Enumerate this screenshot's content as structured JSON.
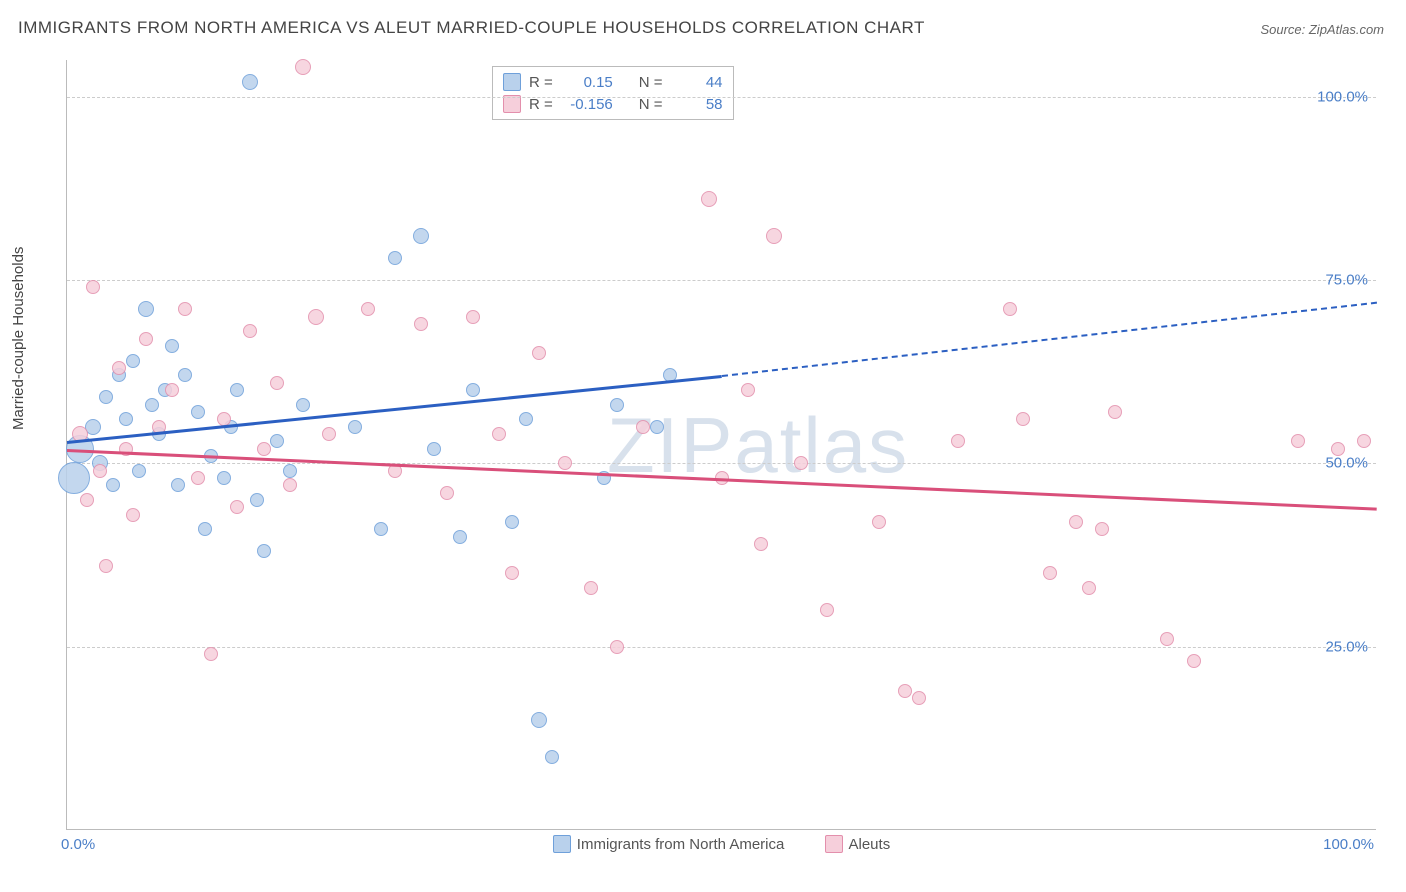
{
  "title": "IMMIGRANTS FROM NORTH AMERICA VS ALEUT MARRIED-COUPLE HOUSEHOLDS CORRELATION CHART",
  "source": "Source: ZipAtlas.com",
  "watermark": "ZIPatlas",
  "ylabel": "Married-couple Households",
  "chart": {
    "type": "scatter",
    "xlim": [
      0,
      100
    ],
    "ylim": [
      0,
      105
    ],
    "yticks": [
      25,
      50,
      75,
      100
    ],
    "ytick_labels": [
      "25.0%",
      "50.0%",
      "75.0%",
      "100.0%"
    ],
    "xtick_left": "0.0%",
    "xtick_right": "100.0%",
    "grid_color": "#cccccc",
    "axis_color": "#bbbbbb",
    "background_color": "#ffffff"
  },
  "series": [
    {
      "name": "Immigrants from North America",
      "fill": "#b9d1ec",
      "stroke": "#6fa0da",
      "line_color": "#2b5fc2",
      "r": 0.15,
      "n": 44,
      "trend": {
        "x1": 0,
        "y1": 53,
        "x2_solid": 50,
        "y2_solid": 62,
        "x2": 100,
        "y2": 72
      },
      "points": [
        {
          "x": 1,
          "y": 52,
          "r": 14
        },
        {
          "x": 0.5,
          "y": 48,
          "r": 16
        },
        {
          "x": 2,
          "y": 55,
          "r": 8
        },
        {
          "x": 2.5,
          "y": 50,
          "r": 8
        },
        {
          "x": 3,
          "y": 59,
          "r": 7
        },
        {
          "x": 3.5,
          "y": 47,
          "r": 7
        },
        {
          "x": 4,
          "y": 62,
          "r": 7
        },
        {
          "x": 4.5,
          "y": 56,
          "r": 7
        },
        {
          "x": 5,
          "y": 64,
          "r": 7
        },
        {
          "x": 5.5,
          "y": 49,
          "r": 7
        },
        {
          "x": 6,
          "y": 71,
          "r": 8
        },
        {
          "x": 6.5,
          "y": 58,
          "r": 7
        },
        {
          "x": 7,
          "y": 54,
          "r": 7
        },
        {
          "x": 7.5,
          "y": 60,
          "r": 7
        },
        {
          "x": 8,
          "y": 66,
          "r": 7
        },
        {
          "x": 8.5,
          "y": 47,
          "r": 7
        },
        {
          "x": 9,
          "y": 62,
          "r": 7
        },
        {
          "x": 10,
          "y": 57,
          "r": 7
        },
        {
          "x": 10.5,
          "y": 41,
          "r": 7
        },
        {
          "x": 11,
          "y": 51,
          "r": 7
        },
        {
          "x": 12,
          "y": 48,
          "r": 7
        },
        {
          "x": 12.5,
          "y": 55,
          "r": 7
        },
        {
          "x": 13,
          "y": 60,
          "r": 7
        },
        {
          "x": 14,
          "y": 102,
          "r": 8
        },
        {
          "x": 14.5,
          "y": 45,
          "r": 7
        },
        {
          "x": 15,
          "y": 38,
          "r": 7
        },
        {
          "x": 16,
          "y": 53,
          "r": 7
        },
        {
          "x": 17,
          "y": 49,
          "r": 7
        },
        {
          "x": 18,
          "y": 58,
          "r": 7
        },
        {
          "x": 22,
          "y": 55,
          "r": 7
        },
        {
          "x": 24,
          "y": 41,
          "r": 7
        },
        {
          "x": 25,
          "y": 78,
          "r": 7
        },
        {
          "x": 27,
          "y": 81,
          "r": 8
        },
        {
          "x": 28,
          "y": 52,
          "r": 7
        },
        {
          "x": 30,
          "y": 40,
          "r": 7
        },
        {
          "x": 31,
          "y": 60,
          "r": 7
        },
        {
          "x": 34,
          "y": 42,
          "r": 7
        },
        {
          "x": 35,
          "y": 56,
          "r": 7
        },
        {
          "x": 36,
          "y": 15,
          "r": 8
        },
        {
          "x": 37,
          "y": 10,
          "r": 7
        },
        {
          "x": 41,
          "y": 48,
          "r": 7
        },
        {
          "x": 42,
          "y": 58,
          "r": 7
        },
        {
          "x": 45,
          "y": 55,
          "r": 7
        },
        {
          "x": 46,
          "y": 62,
          "r": 7
        }
      ]
    },
    {
      "name": "Aleuts",
      "fill": "#f6cfdb",
      "stroke": "#e38fac",
      "line_color": "#d94f7a",
      "r": -0.156,
      "n": 58,
      "trend": {
        "x1": 0,
        "y1": 52,
        "x2_solid": 100,
        "y2_solid": 44,
        "x2": 100,
        "y2": 44
      },
      "points": [
        {
          "x": 1,
          "y": 54,
          "r": 8
        },
        {
          "x": 1.5,
          "y": 45,
          "r": 7
        },
        {
          "x": 2,
          "y": 74,
          "r": 7
        },
        {
          "x": 2.5,
          "y": 49,
          "r": 7
        },
        {
          "x": 3,
          "y": 36,
          "r": 7
        },
        {
          "x": 4,
          "y": 63,
          "r": 7
        },
        {
          "x": 4.5,
          "y": 52,
          "r": 7
        },
        {
          "x": 5,
          "y": 43,
          "r": 7
        },
        {
          "x": 6,
          "y": 67,
          "r": 7
        },
        {
          "x": 7,
          "y": 55,
          "r": 7
        },
        {
          "x": 8,
          "y": 60,
          "r": 7
        },
        {
          "x": 9,
          "y": 71,
          "r": 7
        },
        {
          "x": 10,
          "y": 48,
          "r": 7
        },
        {
          "x": 11,
          "y": 24,
          "r": 7
        },
        {
          "x": 12,
          "y": 56,
          "r": 7
        },
        {
          "x": 13,
          "y": 44,
          "r": 7
        },
        {
          "x": 14,
          "y": 68,
          "r": 7
        },
        {
          "x": 15,
          "y": 52,
          "r": 7
        },
        {
          "x": 16,
          "y": 61,
          "r": 7
        },
        {
          "x": 17,
          "y": 47,
          "r": 7
        },
        {
          "x": 18,
          "y": 104,
          "r": 8
        },
        {
          "x": 19,
          "y": 70,
          "r": 8
        },
        {
          "x": 20,
          "y": 54,
          "r": 7
        },
        {
          "x": 23,
          "y": 71,
          "r": 7
        },
        {
          "x": 25,
          "y": 49,
          "r": 7
        },
        {
          "x": 27,
          "y": 69,
          "r": 7
        },
        {
          "x": 29,
          "y": 46,
          "r": 7
        },
        {
          "x": 31,
          "y": 70,
          "r": 7
        },
        {
          "x": 33,
          "y": 54,
          "r": 7
        },
        {
          "x": 34,
          "y": 35,
          "r": 7
        },
        {
          "x": 36,
          "y": 65,
          "r": 7
        },
        {
          "x": 38,
          "y": 50,
          "r": 7
        },
        {
          "x": 40,
          "y": 33,
          "r": 7
        },
        {
          "x": 42,
          "y": 25,
          "r": 7
        },
        {
          "x": 44,
          "y": 55,
          "r": 7
        },
        {
          "x": 49,
          "y": 86,
          "r": 8
        },
        {
          "x": 50,
          "y": 48,
          "r": 7
        },
        {
          "x": 52,
          "y": 60,
          "r": 7
        },
        {
          "x": 53,
          "y": 39,
          "r": 7
        },
        {
          "x": 54,
          "y": 81,
          "r": 8
        },
        {
          "x": 56,
          "y": 50,
          "r": 7
        },
        {
          "x": 58,
          "y": 30,
          "r": 7
        },
        {
          "x": 62,
          "y": 42,
          "r": 7
        },
        {
          "x": 64,
          "y": 19,
          "r": 7
        },
        {
          "x": 65,
          "y": 18,
          "r": 7
        },
        {
          "x": 68,
          "y": 53,
          "r": 7
        },
        {
          "x": 72,
          "y": 71,
          "r": 7
        },
        {
          "x": 73,
          "y": 56,
          "r": 7
        },
        {
          "x": 75,
          "y": 35,
          "r": 7
        },
        {
          "x": 77,
          "y": 42,
          "r": 7
        },
        {
          "x": 78,
          "y": 33,
          "r": 7
        },
        {
          "x": 79,
          "y": 41,
          "r": 7
        },
        {
          "x": 80,
          "y": 57,
          "r": 7
        },
        {
          "x": 84,
          "y": 26,
          "r": 7
        },
        {
          "x": 86,
          "y": 23,
          "r": 7
        },
        {
          "x": 94,
          "y": 53,
          "r": 7
        },
        {
          "x": 97,
          "y": 52,
          "r": 7
        },
        {
          "x": 99,
          "y": 53,
          "r": 7
        }
      ]
    }
  ],
  "legend_labels": {
    "series1": "Immigrants from North America",
    "series2": "Aleuts"
  },
  "stats_labels": {
    "R": "R =",
    "N": "N ="
  }
}
